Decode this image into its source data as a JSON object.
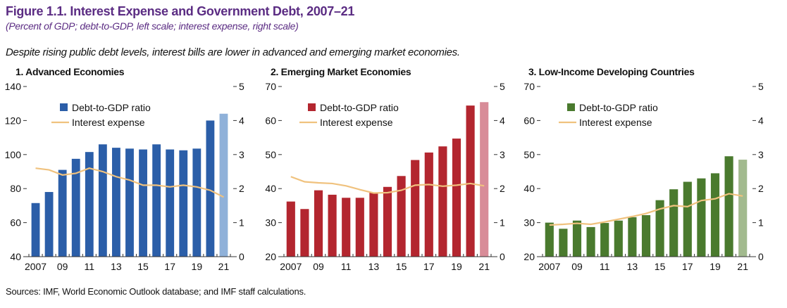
{
  "header": {
    "title": "Figure 1.1. Interest Expense and Government Debt, 2007–21",
    "subtitle": "(Percent of GDP; debt-to-GDP, left scale; interest expense, right scale)",
    "caption": "Despite rising public debt levels, interest bills are lower in advanced and emerging market economies."
  },
  "footer": {
    "source": "Sources: IMF, World Economic Outlook database; and IMF staff calculations."
  },
  "colors": {
    "title": "#5b2c83",
    "line": "#f0c27e"
  },
  "chart_data": [
    {
      "type": "bar+line",
      "title": "1. Advanced Economies",
      "x": [
        2007,
        2008,
        2009,
        2010,
        2011,
        2012,
        2013,
        2014,
        2015,
        2016,
        2017,
        2018,
        2019,
        2020,
        2021
      ],
      "x_tick_labels": [
        "2007",
        "09",
        "11",
        "13",
        "15",
        "17",
        "19",
        "21"
      ],
      "ylim_left": [
        40,
        140
      ],
      "yticks_left": [
        40,
        60,
        80,
        100,
        120,
        140
      ],
      "ylim_right": [
        0,
        5
      ],
      "yticks_right": [
        0,
        1,
        2,
        3,
        4,
        5
      ],
      "legend_placement": "top-left",
      "bar_color": "#2b5ea8",
      "projection_color": "#8fb1d9",
      "series": [
        {
          "name": "Debt-to-GDP ratio",
          "axis": "left",
          "type": "bar",
          "values": [
            71.5,
            78,
            91,
            97.5,
            101.5,
            106,
            104,
            103.5,
            103,
            106,
            103,
            102.5,
            103.5,
            120,
            124
          ]
        },
        {
          "name": "Interest expense",
          "axis": "right",
          "type": "line",
          "values": [
            2.6,
            2.55,
            2.4,
            2.45,
            2.6,
            2.5,
            2.35,
            2.25,
            2.1,
            2.1,
            2.05,
            2.1,
            2.05,
            1.95,
            1.75
          ]
        }
      ]
    },
    {
      "type": "bar+line",
      "title": "2. Emerging Market Economies",
      "x": [
        2007,
        2008,
        2009,
        2010,
        2011,
        2012,
        2013,
        2014,
        2015,
        2016,
        2017,
        2018,
        2019,
        2020,
        2021
      ],
      "x_tick_labels": [
        "2007",
        "09",
        "11",
        "13",
        "15",
        "17",
        "19",
        "21"
      ],
      "ylim_left": [
        20,
        70
      ],
      "yticks_left": [
        20,
        30,
        40,
        50,
        60,
        70
      ],
      "ylim_right": [
        0,
        5
      ],
      "yticks_right": [
        0,
        1,
        2,
        3,
        4,
        5
      ],
      "legend_placement": "top-left",
      "bar_color": "#b3262f",
      "projection_color": "#d88c98",
      "series": [
        {
          "name": "Debt-to-GDP ratio",
          "axis": "left",
          "type": "bar",
          "values": [
            36.2,
            34,
            39.5,
            38.2,
            37.3,
            37.3,
            38.8,
            40.5,
            43.7,
            48.4,
            50.6,
            52.4,
            54.7,
            64.4,
            65.4
          ]
        },
        {
          "name": "Interest expense",
          "axis": "right",
          "type": "line",
          "values": [
            2.35,
            2.2,
            2.17,
            2.15,
            2.08,
            1.97,
            1.87,
            1.88,
            1.95,
            2.1,
            2.12,
            2.07,
            2.1,
            2.15,
            2.08
          ]
        }
      ]
    },
    {
      "type": "bar+line",
      "title": "3. Low-Income Developing Countries",
      "x": [
        2007,
        2008,
        2009,
        2010,
        2011,
        2012,
        2013,
        2014,
        2015,
        2016,
        2017,
        2018,
        2019,
        2020,
        2021
      ],
      "x_tick_labels": [
        "2007",
        "09",
        "11",
        "13",
        "15",
        "17",
        "19",
        "21"
      ],
      "ylim_left": [
        20,
        70
      ],
      "yticks_left": [
        20,
        30,
        40,
        50,
        60,
        70
      ],
      "ylim_right": [
        0,
        5
      ],
      "yticks_right": [
        0,
        1,
        2,
        3,
        4,
        5
      ],
      "legend_placement": "top-left",
      "bar_color": "#4a7a2e",
      "projection_color": "#a2ba8e",
      "series": [
        {
          "name": "Debt-to-GDP ratio",
          "axis": "left",
          "type": "bar",
          "values": [
            30,
            28.2,
            30.6,
            28.7,
            29.9,
            30.6,
            31.6,
            32.2,
            36.6,
            39.8,
            42,
            43,
            44.5,
            49.5,
            48.5
          ]
        },
        {
          "name": "Interest expense",
          "axis": "right",
          "type": "line",
          "values": [
            0.93,
            0.95,
            0.98,
            0.95,
            1.02,
            1.1,
            1.18,
            1.27,
            1.4,
            1.5,
            1.47,
            1.65,
            1.7,
            1.85,
            1.78
          ]
        }
      ]
    }
  ]
}
